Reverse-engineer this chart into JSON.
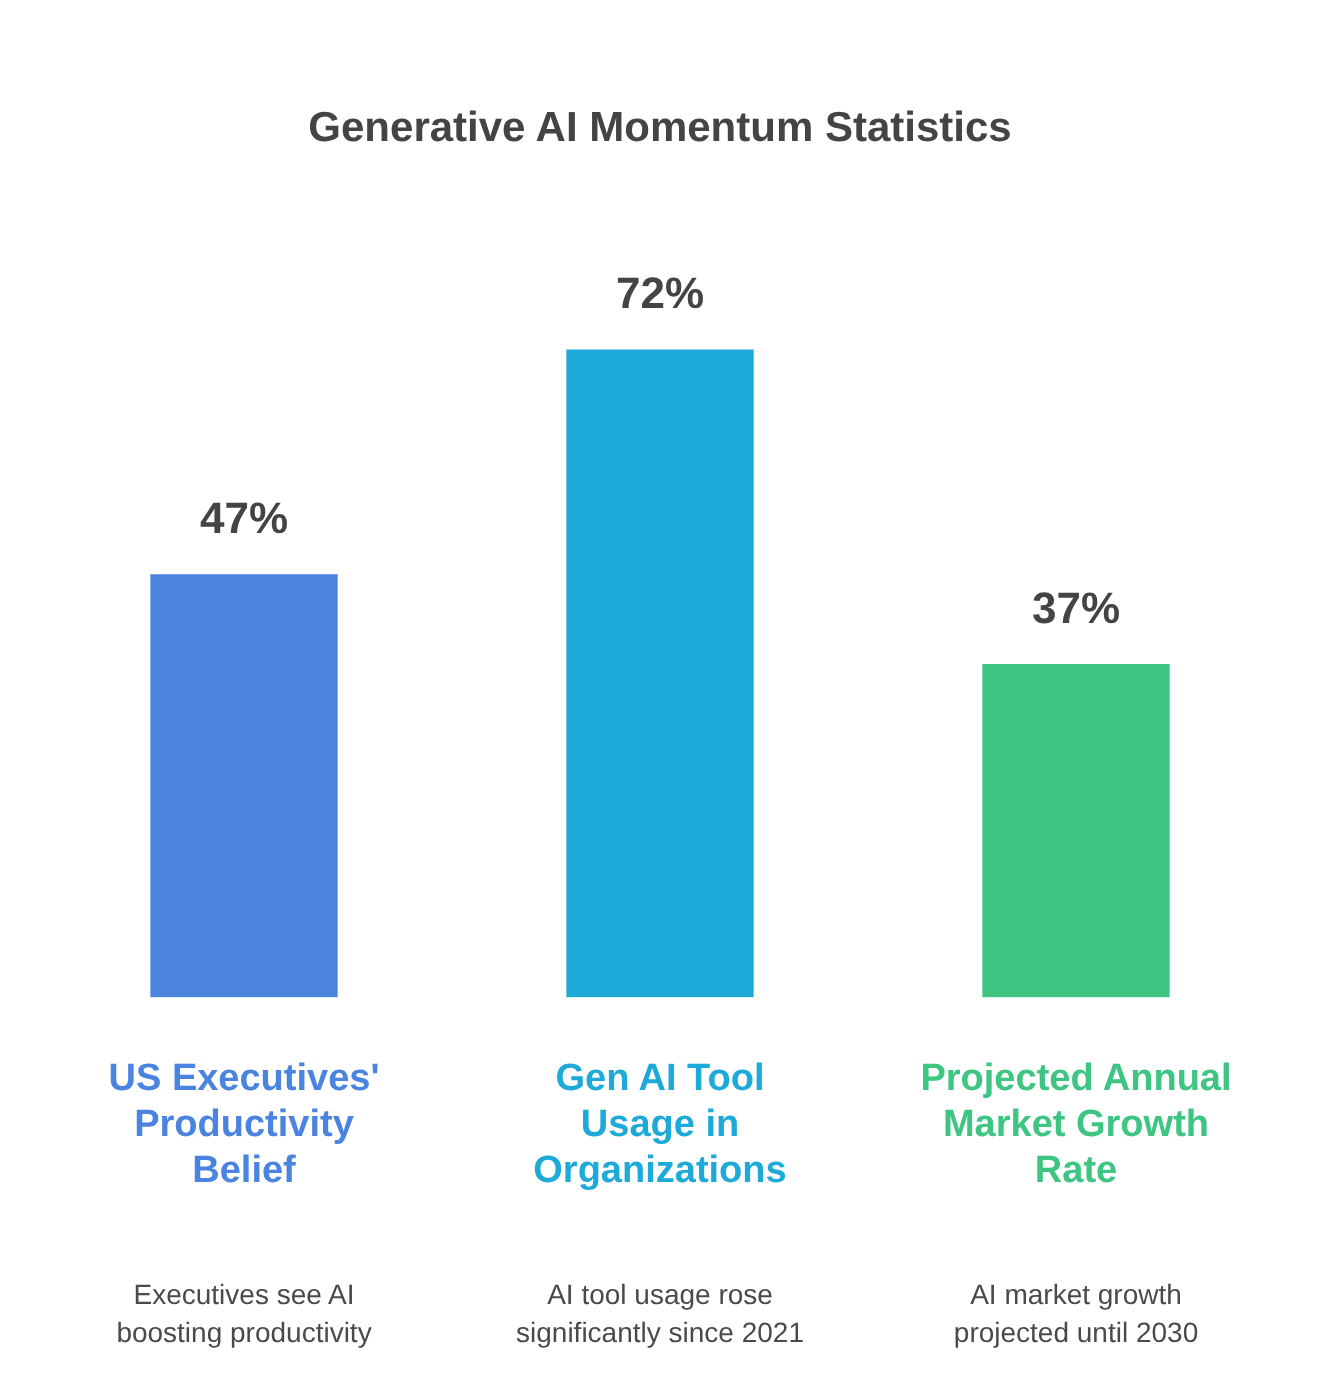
{
  "chart_data": {
    "type": "bar",
    "title": "Generative AI Momentum Statistics",
    "categories": [
      "US Executives' Productivity Belief",
      "Gen AI Tool Usage in Organizations",
      "Projected Annual Market Growth Rate"
    ],
    "values": [
      47,
      72,
      37
    ],
    "colors": [
      "#4a84e0",
      "#1eaad9",
      "#3dc581"
    ],
    "value_labels": [
      "47%",
      "72%",
      "37%"
    ],
    "annotations": [
      "Executives see AI boosting productivity",
      "AI tool usage rose significantly since 2021",
      "AI market growth projected until 2030"
    ],
    "tick_labels": "x"
  }
}
